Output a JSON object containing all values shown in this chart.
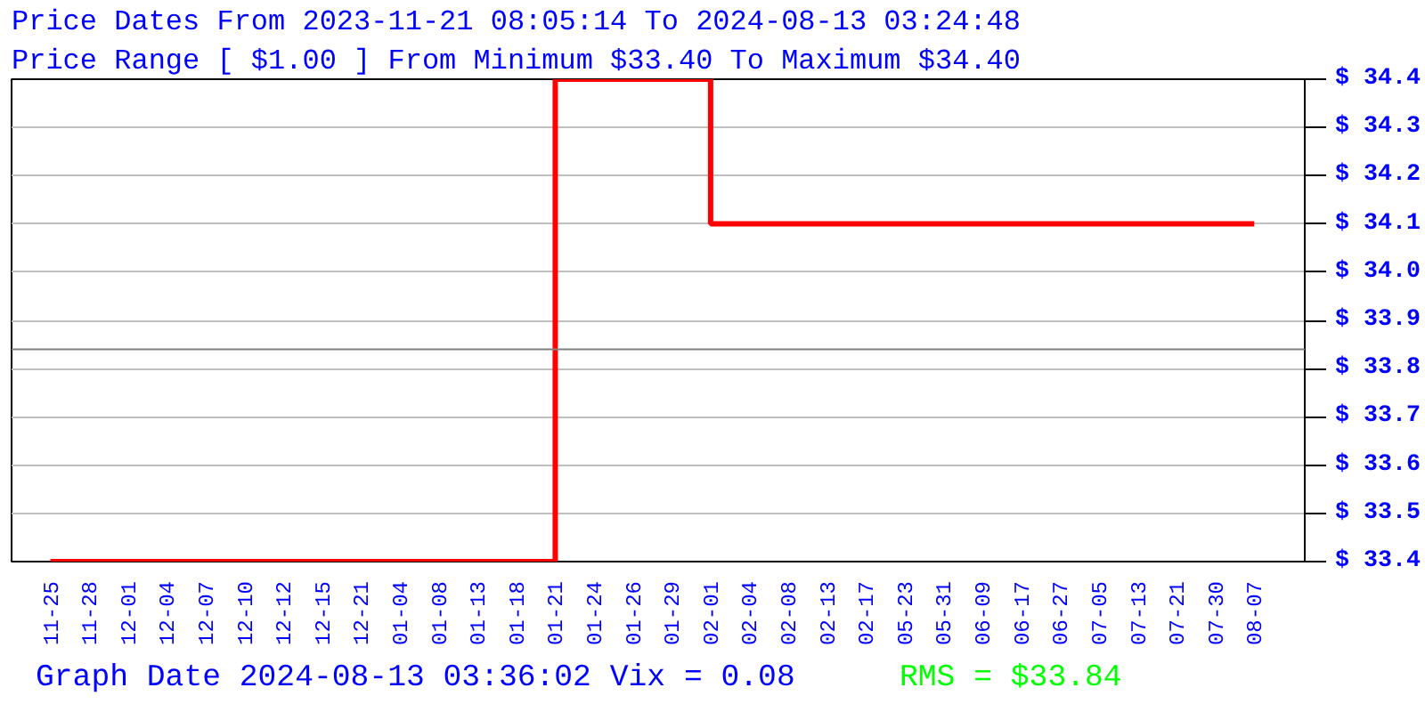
{
  "chart_data": {
    "type": "step",
    "title": "Price Dates From 2023-11-21 08:05:14 To 2024-08-13 03:24:48",
    "subtitle": "Price Range [ $1.00 ] From Minimum $33.40 To Maximum $34.40",
    "categories": [
      "11-25",
      "11-28",
      "12-01",
      "12-04",
      "12-07",
      "12-10",
      "12-12",
      "12-15",
      "12-21",
      "01-04",
      "01-08",
      "01-13",
      "01-18",
      "01-21",
      "01-24",
      "01-26",
      "01-29",
      "02-01",
      "02-04",
      "02-08",
      "02-13",
      "02-17",
      "05-23",
      "05-31",
      "06-09",
      "06-17",
      "06-27",
      "07-05",
      "07-13",
      "07-21",
      "07-30",
      "08-07"
    ],
    "series": [
      {
        "color": "#ff0000",
        "values": [
          33.4,
          33.4,
          33.4,
          33.4,
          33.4,
          33.4,
          33.4,
          33.4,
          33.4,
          33.4,
          33.4,
          33.4,
          33.4,
          34.4,
          34.4,
          34.4,
          34.4,
          34.1,
          34.1,
          34.1,
          34.1,
          34.1,
          34.1,
          34.1,
          34.1,
          34.1,
          34.1,
          34.1,
          34.1,
          34.1,
          34.1,
          34.1
        ]
      }
    ],
    "ylim": [
      33.4,
      34.4
    ],
    "yticks": [
      {
        "value": 33.4,
        "label": "$ 33.4"
      },
      {
        "value": 33.5,
        "label": "$ 33.5"
      },
      {
        "value": 33.6,
        "label": "$ 33.6"
      },
      {
        "value": 33.7,
        "label": "$ 33.7"
      },
      {
        "value": 33.8,
        "label": "$ 33.8"
      },
      {
        "value": 33.9,
        "label": "$ 33.9"
      },
      {
        "value": 34.0,
        "label": "$ 34.0"
      },
      {
        "value": 34.1,
        "label": "$ 34.1"
      },
      {
        "value": 34.2,
        "label": "$ 34.2"
      },
      {
        "value": 34.3,
        "label": "$ 34.3"
      },
      {
        "value": 34.4,
        "label": "$ 34.4"
      }
    ],
    "grid": "y",
    "line_style": "solid",
    "marker": "none",
    "ref_lines": [
      {
        "axis": "y",
        "value": 33.84,
        "color": "#808080"
      }
    ],
    "annotations": [
      "Graph Date 2024-08-13 03:36:02 Vix = 0.08",
      "RMS = $33.84"
    ]
  }
}
